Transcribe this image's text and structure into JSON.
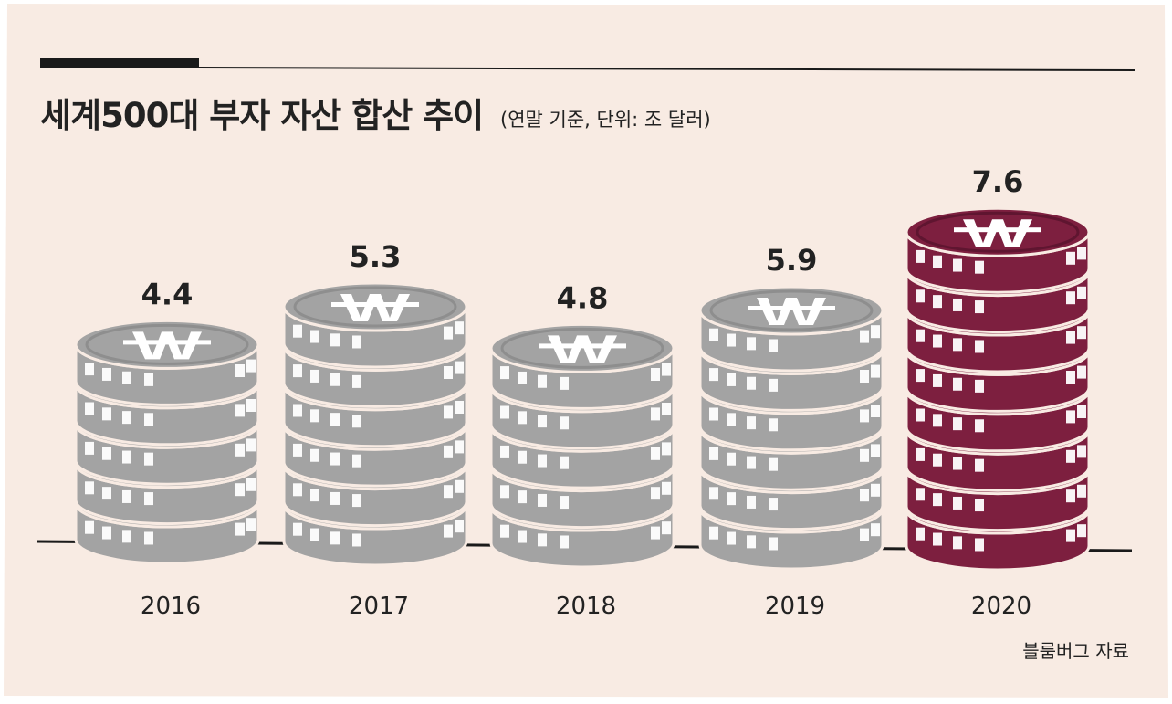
{
  "title": "세계500대 부자 자산 합산 추이",
  "subtitle": "(연말 기준, 단위: 조 달러)",
  "source": "블룸버그 자료",
  "colors": {
    "background": "#f8ebe3",
    "coin_gray": "#a3a3a3",
    "coin_gray_dark": "#8e8e8e",
    "coin_highlight": "#7d1f3f",
    "coin_highlight_dark": "#5f1530",
    "text": "#222222",
    "rule": "#1a1a1a"
  },
  "icons": {
    "coin_symbol": "won-icon"
  },
  "chart_data": {
    "type": "bar",
    "categories": [
      "2016",
      "2017",
      "2018",
      "2019",
      "2020"
    ],
    "values": [
      4.4,
      5.3,
      4.8,
      5.9,
      7.6
    ],
    "value_labels": [
      "4.4",
      "5.3",
      "4.8",
      "5.9",
      "7.6"
    ],
    "highlight": "2020",
    "title": "세계500대 부자 자산 합산 추이",
    "subtitle": "(연말 기준, 단위: 조 달러)",
    "xlabel": "",
    "ylabel": "",
    "grid": false,
    "legend": "none"
  }
}
